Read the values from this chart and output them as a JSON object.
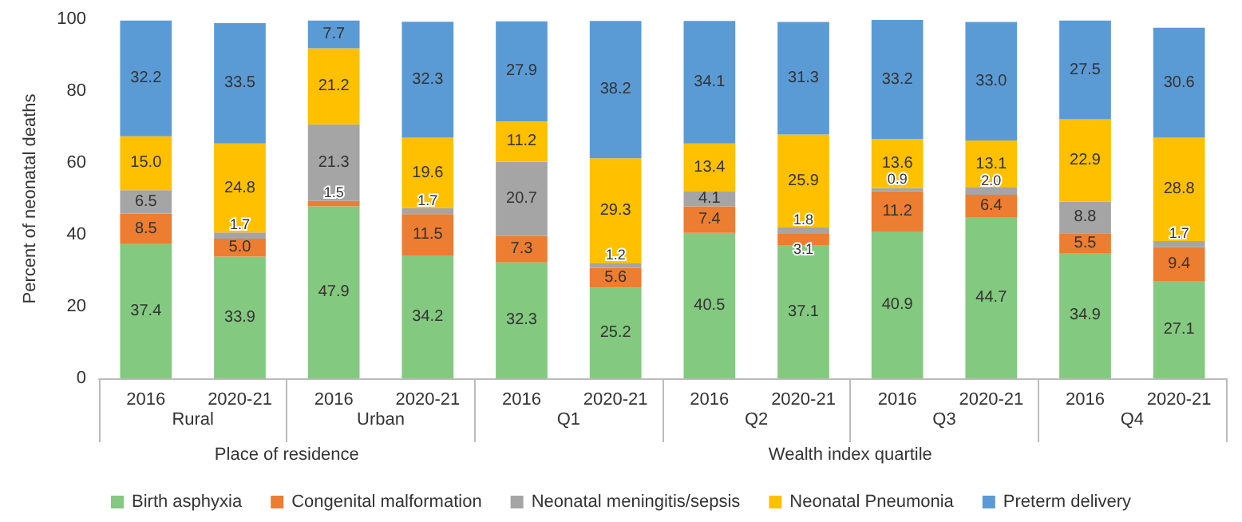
{
  "chart_data": {
    "type": "bar",
    "stacked": true,
    "ylabel": "Percent of neonatal deaths",
    "categories": [
      "2016",
      "2020-21",
      "2016",
      "2020-21",
      "2016",
      "2020-21",
      "2016",
      "2020-21",
      "2016",
      "2020-21",
      "2016",
      "2020-21"
    ],
    "series": [
      {
        "name": "Birth asphyxia",
        "color": "#83c97f",
        "values": [
          37.4,
          33.9,
          47.9,
          34.2,
          32.3,
          25.2,
          40.5,
          37.1,
          40.9,
          44.7,
          34.9,
          27.1
        ],
        "value_labels": [
          "37.4",
          "33.9",
          "47.9",
          "34.2",
          "32.3",
          "25.2",
          "40.5",
          "37.1",
          "40.9",
          "44.7",
          "34.9",
          "27.1"
        ]
      },
      {
        "name": "Congenital malformation",
        "color": "#ed7d31",
        "values": [
          8.5,
          5.0,
          1.5,
          11.5,
          7.3,
          5.6,
          7.4,
          3.1,
          11.2,
          6.4,
          5.5,
          9.4
        ],
        "value_labels": [
          "8.5",
          "5.0",
          "1.5",
          "11.5",
          "7.3",
          "5.6",
          "7.4",
          "3.1",
          "11.2",
          "6.4",
          "5.5",
          "9.4"
        ]
      },
      {
        "name": "Neonatal meningitis/sepsis",
        "color": "#a5a5a5",
        "values": [
          6.5,
          1.7,
          21.3,
          1.7,
          20.7,
          1.2,
          4.1,
          1.8,
          0.9,
          2.0,
          8.8,
          1.7
        ],
        "value_labels": [
          "6.5",
          "1.7",
          "21.3",
          "1.7",
          "20.7",
          "1.2",
          "4.1",
          "1.8",
          "0.9",
          "2.0",
          "8.8",
          "1.7"
        ]
      },
      {
        "name": "Neonatal Pneumonia",
        "color": "#ffc000",
        "values": [
          15.0,
          24.8,
          21.2,
          19.6,
          11.2,
          29.3,
          13.4,
          25.9,
          13.6,
          13.1,
          22.9,
          28.8
        ],
        "value_labels": [
          "15.0",
          "24.8",
          "21.2",
          "19.6",
          "11.2",
          "29.3",
          "13.4",
          "25.9",
          "13.6",
          "13.1",
          "22.9",
          "28.8"
        ]
      },
      {
        "name": "Preterm delivery",
        "color": "#5b9bd5",
        "values": [
          32.2,
          33.5,
          7.7,
          32.3,
          27.9,
          38.2,
          34.1,
          31.3,
          33.2,
          33.0,
          27.5,
          30.6
        ],
        "value_labels": [
          "32.2",
          "33.5",
          "7.7",
          "32.3",
          "27.9",
          "38.2",
          "34.1",
          "31.3",
          "33.2",
          "33.0",
          "27.5",
          "30.6"
        ]
      }
    ],
    "ylim": [
      0,
      100
    ],
    "yticks": [
      0,
      20,
      40,
      60,
      80,
      100
    ],
    "grid": false,
    "legend": "bottom",
    "annotations": [
      "Rural",
      "Urban",
      "Q1",
      "Q2",
      "Q3",
      "Q4",
      "Place of residence",
      "Wealth index quartile"
    ]
  }
}
